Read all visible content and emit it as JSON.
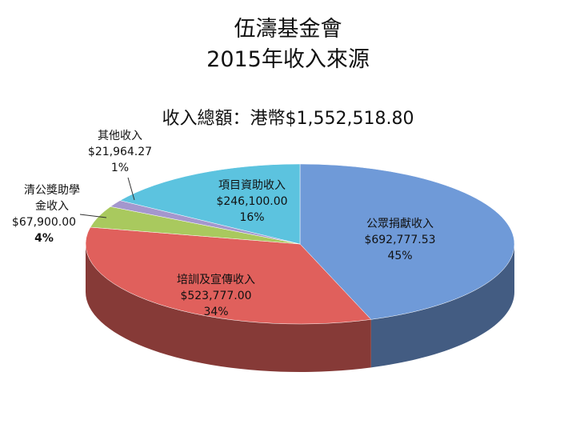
{
  "chart_data": {
    "type": "pie3d",
    "title": "伍濤基金會",
    "subtitle": "2015年收入來源",
    "annotation": "收入總額：港幣$1,552,518.80",
    "categories": [
      "公眾捐獻收入",
      "培訓及宣傳收入",
      "清公獎助學金收入",
      "其他收入",
      "項目資助收入"
    ],
    "values": [
      692777.53,
      523777.0,
      67900.0,
      21964.27,
      246100.0
    ],
    "value_labels": [
      "$692,777.53",
      "$523,777.00",
      "$67,900.00",
      "$21,964.27",
      "$246,100.00"
    ],
    "percent_labels": [
      "45%",
      "34%",
      "4%",
      "1%",
      "16%"
    ],
    "colors": [
      "#6f9ad8",
      "#e0605c",
      "#a9c95e",
      "#a497cd",
      "#5cc3df"
    ]
  }
}
